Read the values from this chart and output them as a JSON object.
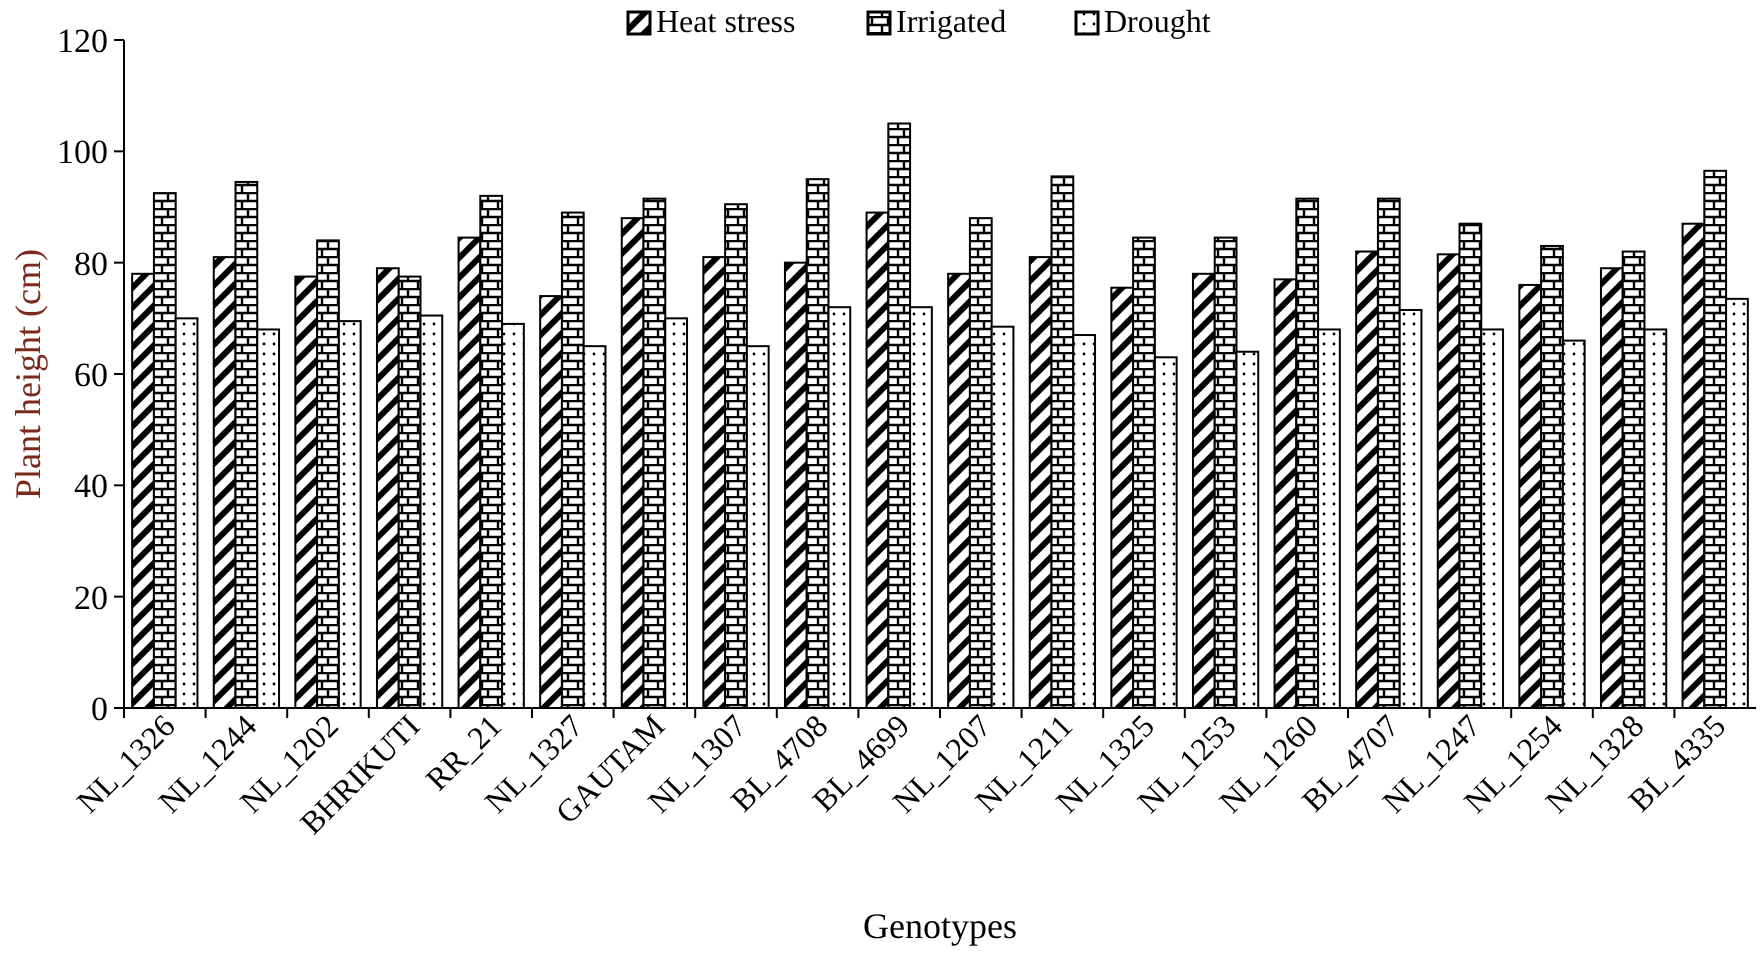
{
  "chart_data": {
    "type": "bar",
    "xlabel": "Genotypes",
    "ylabel": "Plant height (cm)",
    "categories": [
      "NL_1326",
      "NL_1244",
      "NL_1202",
      "BHRIKUTI",
      "RR_21",
      "NL_1327",
      "GAUTAM",
      "NL_1307",
      "BL_4708",
      "BL_4699",
      "NL_1207",
      "NL_1211",
      "NL_1325",
      "NL_1253",
      "NL_1260",
      "BL_4707",
      "NL_1247",
      "NL_1254",
      "NL_1328",
      "BL_4335"
    ],
    "series": [
      {
        "name": "Heat stress",
        "color": "#000000",
        "values": [
          78,
          81,
          77.5,
          79,
          84.5,
          74,
          88,
          81,
          80,
          89,
          78,
          81,
          75.5,
          78,
          77,
          82,
          81.5,
          76,
          79,
          87
        ]
      },
      {
        "name": "Irrigated",
        "color": "#000000",
        "values": [
          92.5,
          94.5,
          84,
          77.5,
          92,
          89,
          91.5,
          90.5,
          95,
          105,
          88,
          95.5,
          84.5,
          84.5,
          91.5,
          91.5,
          87,
          83,
          82,
          96.5
        ]
      },
      {
        "name": "Drought",
        "color": "#000000",
        "values": [
          70,
          68,
          69.5,
          70.5,
          69,
          65,
          70,
          65,
          72,
          72,
          68.5,
          67,
          63,
          64,
          68,
          71.5,
          68,
          66,
          68,
          73.5
        ]
      }
    ],
    "ylim": [
      0,
      120
    ],
    "yticks": [
      0,
      20,
      40,
      60,
      80,
      100,
      120
    ],
    "grid": false,
    "legend": "top"
  }
}
